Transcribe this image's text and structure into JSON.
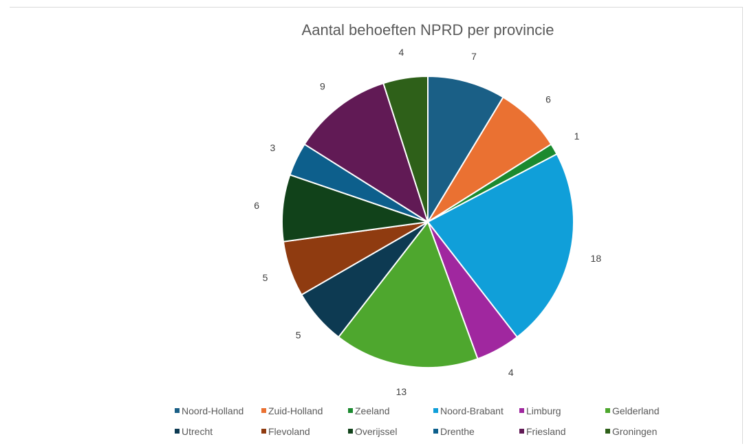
{
  "chart_data": {
    "type": "pie",
    "title": "Aantal behoeften NPRD per provincie",
    "categories": [
      "Noord-Holland",
      "Zuid-Holland",
      "Zeeland",
      "Noord-Brabant",
      "Limburg",
      "Gelderland",
      "Utrecht",
      "Flevoland",
      "Overijssel",
      "Drenthe",
      "Friesland",
      "Groningen"
    ],
    "values": [
      7,
      6,
      1,
      18,
      4,
      13,
      5,
      5,
      6,
      3,
      9,
      4
    ],
    "data_labels": [
      "7",
      "6",
      "1",
      "18",
      "4",
      "13",
      "5",
      "5",
      "6",
      "3",
      "9",
      "4"
    ],
    "colors": [
      "#1a5f86",
      "#ea7132",
      "#1b8a2f",
      "#109fd9",
      "#a0279f",
      "#4ea72e",
      "#0d3a52",
      "#8f3b10",
      "#11421a",
      "#0d5f8c",
      "#611a55",
      "#2e6019"
    ],
    "legend": {
      "position": "bottom",
      "entries": [
        "Noord-Holland",
        "Zuid-Holland",
        "Zeeland",
        "Noord-Brabant",
        "Limburg",
        "Gelderland",
        "Utrecht",
        "Flevoland",
        "Overijssel",
        "Drenthe",
        "Friesland",
        "Groningen"
      ]
    }
  }
}
